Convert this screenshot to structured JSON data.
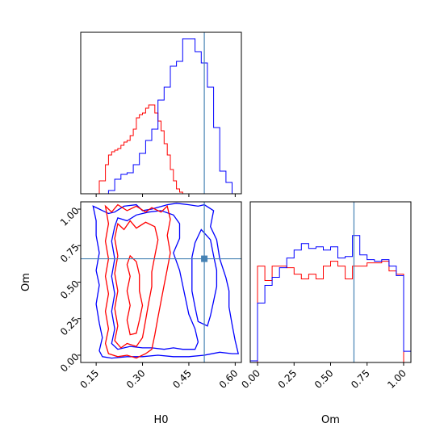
{
  "chart_data": {
    "type": "corner",
    "parameters": [
      "H0",
      "Om"
    ],
    "truth": {
      "H0": 0.5,
      "Om": 0.66
    },
    "colors": {
      "red": "#ff0000",
      "blue": "#0000ff",
      "truth": "#4682b4",
      "axis": "#000000"
    },
    "panels": {
      "h0_hist": {
        "xlim": [
          0.1,
          0.62
        ],
        "xticks": [
          0.15,
          0.3,
          0.45,
          0.6
        ],
        "ylim": [
          0,
          1.0
        ],
        "series": [
          {
            "color": "red",
            "edges": [
              0.16,
              0.18,
              0.19,
              0.2,
              0.21,
              0.22,
              0.23,
              0.24,
              0.25,
              0.26,
              0.27,
              0.28,
              0.29,
              0.3,
              0.31,
              0.32,
              0.33,
              0.34,
              0.35,
              0.36,
              0.37,
              0.38,
              0.39,
              0.4,
              0.41,
              0.42,
              0.43
            ],
            "values": [
              0.08,
              0.18,
              0.24,
              0.26,
              0.27,
              0.28,
              0.3,
              0.32,
              0.33,
              0.36,
              0.4,
              0.47,
              0.49,
              0.5,
              0.53,
              0.55,
              0.55,
              0.5,
              0.45,
              0.39,
              0.31,
              0.24,
              0.15,
              0.08,
              0.03,
              0.01
            ]
          },
          {
            "color": "blue",
            "edges": [
              0.19,
              0.21,
              0.23,
              0.25,
              0.27,
              0.29,
              0.31,
              0.33,
              0.35,
              0.37,
              0.39,
              0.41,
              0.43,
              0.45,
              0.47,
              0.49,
              0.51,
              0.53,
              0.55,
              0.57,
              0.59
            ],
            "values": [
              0.02,
              0.09,
              0.12,
              0.13,
              0.18,
              0.25,
              0.33,
              0.4,
              0.58,
              0.66,
              0.79,
              0.82,
              0.96,
              0.96,
              0.88,
              0.81,
              0.66,
              0.41,
              0.14,
              0.07
            ]
          }
        ]
      },
      "om_hist": {
        "xlim": [
          -0.05,
          1.05
        ],
        "xticks": [
          "0.00",
          "0.25",
          "0.50",
          "0.75",
          "1.00"
        ],
        "ylim": [
          0,
          1.0
        ],
        "series": [
          {
            "color": "red",
            "edges": [
              0.0,
              0.05,
              0.1,
              0.15,
              0.2,
              0.25,
              0.3,
              0.35,
              0.4,
              0.45,
              0.5,
              0.55,
              0.6,
              0.65,
              0.7,
              0.75,
              0.8,
              0.85,
              0.9,
              0.95,
              1.0
            ],
            "values": [
              0.6,
              0.51,
              0.6,
              0.6,
              0.59,
              0.55,
              0.52,
              0.55,
              0.52,
              0.6,
              0.63,
              0.6,
              0.52,
              0.6,
              0.6,
              0.62,
              0.62,
              0.63,
              0.57,
              0.55
            ]
          },
          {
            "color": "blue",
            "edges": [
              -0.05,
              0.0,
              0.05,
              0.1,
              0.15,
              0.2,
              0.25,
              0.3,
              0.35,
              0.4,
              0.45,
              0.5,
              0.55,
              0.6,
              0.65,
              0.7,
              0.75,
              0.8,
              0.85,
              0.9,
              0.95,
              1.0,
              1.05
            ],
            "values": [
              0.01,
              0.37,
              0.48,
              0.53,
              0.59,
              0.65,
              0.7,
              0.74,
              0.71,
              0.72,
              0.7,
              0.72,
              0.65,
              0.66,
              0.79,
              0.67,
              0.64,
              0.63,
              0.64,
              0.6,
              0.54,
              0.07
            ]
          }
        ]
      },
      "scatter_2d": {
        "xlim": [
          0.1,
          0.62
        ],
        "ylim": [
          -0.05,
          1.05
        ],
        "xticks": [
          "0.15",
          "0.30",
          "0.45",
          "0.60"
        ],
        "yticks": [
          "0.00",
          "0.25",
          "0.50",
          "0.75",
          "1.00"
        ],
        "contours": [
          {
            "color": "blue",
            "points": [
              [
                0.14,
                1.02
              ],
              [
                0.16,
                1.0
              ],
              [
                0.19,
                0.97
              ],
              [
                0.21,
                0.98
              ],
              [
                0.24,
                1.02
              ],
              [
                0.28,
                1.03
              ],
              [
                0.3,
                0.99
              ],
              [
                0.33,
                1.0
              ],
              [
                0.38,
                1.03
              ],
              [
                0.41,
                1.04
              ],
              [
                0.45,
                1.03
              ],
              [
                0.48,
                1.02
              ],
              [
                0.5,
                1.03
              ],
              [
                0.53,
                0.99
              ],
              [
                0.52,
                0.88
              ],
              [
                0.54,
                0.79
              ],
              [
                0.55,
                0.66
              ],
              [
                0.57,
                0.53
              ],
              [
                0.58,
                0.44
              ],
              [
                0.58,
                0.33
              ],
              [
                0.59,
                0.21
              ],
              [
                0.6,
                0.1
              ],
              [
                0.61,
                0.01
              ],
              [
                0.59,
                0.01
              ],
              [
                0.55,
                0.02
              ],
              [
                0.5,
                0.0
              ],
              [
                0.45,
                -0.01
              ],
              [
                0.4,
                -0.01
              ],
              [
                0.35,
                0.0
              ],
              [
                0.3,
                -0.01
              ],
              [
                0.25,
                -0.01
              ],
              [
                0.2,
                -0.02
              ],
              [
                0.17,
                -0.01
              ],
              [
                0.16,
                0.03
              ],
              [
                0.17,
                0.12
              ],
              [
                0.16,
                0.22
              ],
              [
                0.15,
                0.35
              ],
              [
                0.16,
                0.48
              ],
              [
                0.15,
                0.58
              ],
              [
                0.16,
                0.7
              ],
              [
                0.15,
                0.82
              ],
              [
                0.15,
                0.92
              ],
              [
                0.14,
                1.02
              ]
            ]
          },
          {
            "color": "blue",
            "points": [
              [
                0.22,
                0.94
              ],
              [
                0.25,
                0.92
              ],
              [
                0.28,
                0.96
              ],
              [
                0.32,
                0.98
              ],
              [
                0.36,
                0.99
              ],
              [
                0.4,
                0.96
              ],
              [
                0.42,
                0.9
              ],
              [
                0.42,
                0.8
              ],
              [
                0.4,
                0.7
              ],
              [
                0.42,
                0.58
              ],
              [
                0.43,
                0.48
              ],
              [
                0.44,
                0.38
              ],
              [
                0.45,
                0.28
              ],
              [
                0.47,
                0.18
              ],
              [
                0.48,
                0.09
              ],
              [
                0.47,
                0.04
              ],
              [
                0.43,
                0.04
              ],
              [
                0.4,
                0.05
              ],
              [
                0.37,
                0.04
              ],
              [
                0.33,
                0.05
              ],
              [
                0.3,
                0.05
              ],
              [
                0.26,
                0.06
              ],
              [
                0.22,
                0.04
              ],
              [
                0.2,
                0.08
              ],
              [
                0.21,
                0.18
              ],
              [
                0.2,
                0.3
              ],
              [
                0.21,
                0.42
              ],
              [
                0.2,
                0.54
              ],
              [
                0.21,
                0.66
              ],
              [
                0.2,
                0.78
              ],
              [
                0.21,
                0.88
              ],
              [
                0.22,
                0.94
              ]
            ]
          },
          {
            "color": "blue",
            "points": [
              [
                0.49,
                0.86
              ],
              [
                0.52,
                0.79
              ],
              [
                0.53,
                0.68
              ],
              [
                0.54,
                0.58
              ],
              [
                0.54,
                0.47
              ],
              [
                0.53,
                0.37
              ],
              [
                0.52,
                0.27
              ],
              [
                0.51,
                0.2
              ],
              [
                0.48,
                0.23
              ],
              [
                0.47,
                0.33
              ],
              [
                0.46,
                0.44
              ],
              [
                0.46,
                0.56
              ],
              [
                0.46,
                0.67
              ],
              [
                0.47,
                0.77
              ],
              [
                0.49,
                0.86
              ]
            ]
          },
          {
            "color": "red",
            "points": [
              [
                0.18,
                1.02
              ],
              [
                0.2,
                0.98
              ],
              [
                0.22,
                1.03
              ],
              [
                0.25,
                0.99
              ],
              [
                0.28,
                1.02
              ],
              [
                0.31,
                0.98
              ],
              [
                0.33,
                1.01
              ],
              [
                0.36,
                0.98
              ],
              [
                0.38,
                1.02
              ],
              [
                0.39,
                0.93
              ],
              [
                0.38,
                0.82
              ],
              [
                0.39,
                0.7
              ],
              [
                0.38,
                0.59
              ],
              [
                0.37,
                0.48
              ],
              [
                0.36,
                0.37
              ],
              [
                0.35,
                0.26
              ],
              [
                0.34,
                0.14
              ],
              [
                0.33,
                0.04
              ],
              [
                0.31,
                0.01
              ],
              [
                0.28,
                -0.02
              ],
              [
                0.25,
                0.0
              ],
              [
                0.22,
                -0.01
              ],
              [
                0.19,
                0.01
              ],
              [
                0.18,
                0.08
              ],
              [
                0.19,
                0.18
              ],
              [
                0.18,
                0.3
              ],
              [
                0.19,
                0.42
              ],
              [
                0.18,
                0.54
              ],
              [
                0.19,
                0.66
              ],
              [
                0.18,
                0.78
              ],
              [
                0.19,
                0.9
              ],
              [
                0.18,
                1.02
              ]
            ]
          },
          {
            "color": "red",
            "points": [
              [
                0.22,
                0.9
              ],
              [
                0.24,
                0.86
              ],
              [
                0.26,
                0.92
              ],
              [
                0.28,
                0.87
              ],
              [
                0.31,
                0.91
              ],
              [
                0.34,
                0.88
              ],
              [
                0.35,
                0.79
              ],
              [
                0.34,
                0.68
              ],
              [
                0.33,
                0.57
              ],
              [
                0.33,
                0.47
              ],
              [
                0.32,
                0.36
              ],
              [
                0.31,
                0.24
              ],
              [
                0.3,
                0.12
              ],
              [
                0.28,
                0.06
              ],
              [
                0.25,
                0.08
              ],
              [
                0.23,
                0.05
              ],
              [
                0.21,
                0.1
              ],
              [
                0.22,
                0.2
              ],
              [
                0.21,
                0.32
              ],
              [
                0.22,
                0.44
              ],
              [
                0.21,
                0.56
              ],
              [
                0.22,
                0.68
              ],
              [
                0.21,
                0.8
              ],
              [
                0.22,
                0.9
              ]
            ]
          },
          {
            "color": "red",
            "points": [
              [
                0.26,
                0.68
              ],
              [
                0.28,
                0.64
              ],
              [
                0.29,
                0.55
              ],
              [
                0.29,
                0.44
              ],
              [
                0.3,
                0.34
              ],
              [
                0.29,
                0.24
              ],
              [
                0.28,
                0.15
              ],
              [
                0.26,
                0.14
              ],
              [
                0.25,
                0.24
              ],
              [
                0.26,
                0.34
              ],
              [
                0.25,
                0.44
              ],
              [
                0.26,
                0.54
              ],
              [
                0.25,
                0.62
              ],
              [
                0.26,
                0.68
              ]
            ]
          }
        ]
      }
    }
  }
}
